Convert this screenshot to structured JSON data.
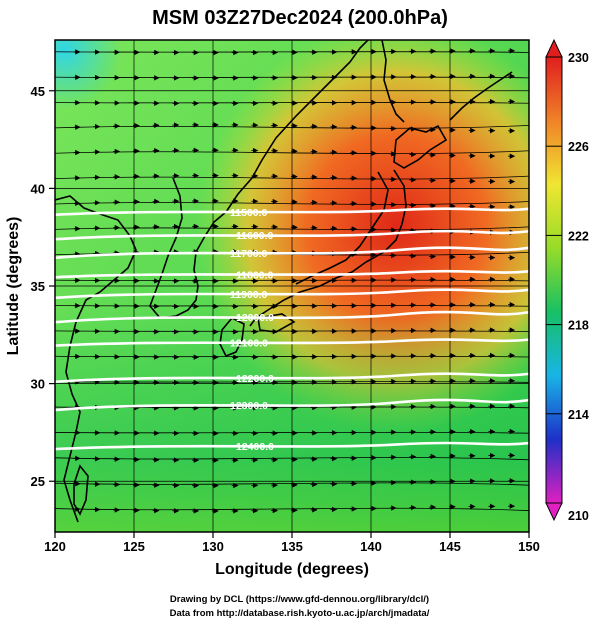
{
  "title": "MSM 03Z27Dec2024 (200.0hPa)",
  "xlabel": "Longitude (degrees)",
  "ylabel": "Latitude  (degrees)",
  "footer": {
    "line1": "Drawing by DCL (https://www.gfd-dennou.org/library/dcl/)",
    "line2": "Data from http://database.rish.kyoto-u.ac.jp/arch/jmadata/"
  },
  "map": {
    "lon_range": [
      120,
      150
    ],
    "lat_range": [
      22.4,
      47.6
    ],
    "x_ticks": [
      "120",
      "125",
      "130",
      "135",
      "140",
      "145",
      "150"
    ],
    "y_ticks": [
      "25",
      "30",
      "35",
      "40",
      "45"
    ],
    "field": "temperature (shaded)",
    "vectors": "wind streamlines, predominantly westerly"
  },
  "colorbar": {
    "range": [
      210,
      230
    ],
    "tick_labels": [
      "230",
      "226",
      "222",
      "218",
      "214",
      "210"
    ],
    "colors": [
      "#e020c0",
      "#1e30c8",
      "#18b4e6",
      "#18c064",
      "#96dc28",
      "#f0e632",
      "#f08228",
      "#e01e1e"
    ]
  },
  "contours": [
    {
      "label": "11500.0",
      "lat": 38.8
    },
    {
      "label": "11600.0",
      "lat": 37.6
    },
    {
      "label": "11700.0",
      "lat": 36.7
    },
    {
      "label": "11800.0",
      "lat": 35.6
    },
    {
      "label": "11900.0",
      "lat": 34.6
    },
    {
      "label": "12000.0",
      "lat": 33.4
    },
    {
      "label": "12100.0",
      "lat": 32.1
    },
    {
      "label": "12200.0",
      "lat": 30.3
    },
    {
      "label": "12300.0",
      "lat": 28.9
    },
    {
      "label": "12400.0",
      "lat": 26.8
    }
  ]
}
